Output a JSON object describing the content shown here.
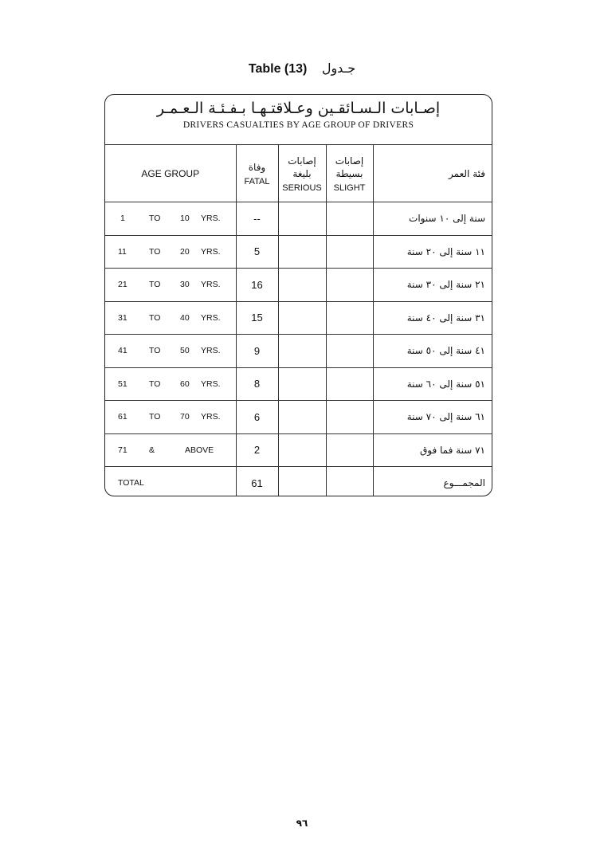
{
  "page_title": {
    "en": "Table (13)",
    "ar": "جـدول"
  },
  "table_title": {
    "ar": "إصـابات الـسـائقـين وعـلاقتـهـا بـفـئـة الـعـمـر",
    "en": "DRIVERS CASUALTIES BY AGE GROUP OF DRIVERS"
  },
  "headers": {
    "age_group": "AGE GROUP",
    "fatal": {
      "ar": "وفاة",
      "en": "FATAL"
    },
    "serious": {
      "ar": "إصابات بليغة",
      "en": "SERIOUS"
    },
    "slight": {
      "ar": "إصابات بسيطة",
      "en": "SLIGHT"
    },
    "age_group_ar": "فئة العمر"
  },
  "rows": [
    {
      "from": "1",
      "to_label": "TO",
      "to": "10",
      "unit": "YRS.",
      "fatal": "--",
      "serious": "",
      "slight": "",
      "ar": "سنة إلى ١٠ سنوات"
    },
    {
      "from": "11",
      "to_label": "TO",
      "to": "20",
      "unit": "YRS.",
      "fatal": "5",
      "serious": "",
      "slight": "",
      "ar": "١١ سنة إلى ٢٠ سنة"
    },
    {
      "from": "21",
      "to_label": "TO",
      "to": "30",
      "unit": "YRS.",
      "fatal": "16",
      "serious": "",
      "slight": "",
      "ar": "٢١ سنة إلى ٣٠ سنة"
    },
    {
      "from": "31",
      "to_label": "TO",
      "to": "40",
      "unit": "YRS.",
      "fatal": "15",
      "serious": "",
      "slight": "",
      "ar": "٣١ سنة إلى ٤٠ سنة"
    },
    {
      "from": "41",
      "to_label": "TO",
      "to": "50",
      "unit": "YRS.",
      "fatal": "9",
      "serious": "",
      "slight": "",
      "ar": "٤١ سنة إلى ٥٠ سنة"
    },
    {
      "from": "51",
      "to_label": "TO",
      "to": "60",
      "unit": "YRS.",
      "fatal": "8",
      "serious": "",
      "slight": "",
      "ar": "٥١ سنة إلى ٦٠ سنة"
    },
    {
      "from": "61",
      "to_label": "TO",
      "to": "70",
      "unit": "YRS.",
      "fatal": "6",
      "serious": "",
      "slight": "",
      "ar": "٦١ سنة إلى ٧٠ سنة"
    },
    {
      "from": "71",
      "to_label": "&",
      "to": "",
      "unit": "ABOVE",
      "fatal": "2",
      "serious": "",
      "slight": "",
      "ar": "٧١ سنة فما فوق"
    }
  ],
  "total": {
    "label": "TOTAL",
    "fatal": "61",
    "serious": "",
    "slight": "",
    "ar": "المجمـــوع"
  },
  "page_number": "٩٦"
}
